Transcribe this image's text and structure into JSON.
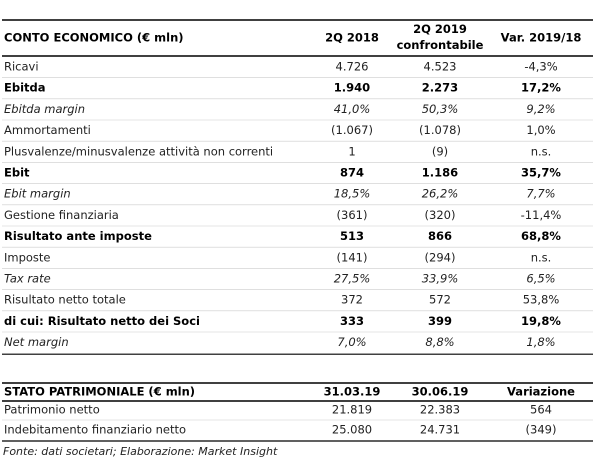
{
  "income_statement": {
    "header": [
      "CONTO ECONOMICO (€ mln)",
      "2Q 2018",
      "2Q 2019 confrontabile",
      "Var. 2019/18"
    ],
    "rows": [
      {
        "label": "Ricavi",
        "values": [
          "4.726",
          "4.523",
          "-4,3%"
        ],
        "style": "normal"
      },
      {
        "label": "Ebitda",
        "values": [
          "1.940",
          "2.273",
          "17,2%"
        ],
        "style": "bold"
      },
      {
        "label": "Ebitda margin",
        "values": [
          "41,0%",
          "50,3%",
          "9,2%"
        ],
        "style": "italic"
      },
      {
        "label": "Ammortamenti",
        "values": [
          "(1.067)",
          "(1.078)",
          "1,0%"
        ],
        "style": "normal"
      },
      {
        "label": "Plusvalenze/minusvalenze attività non correnti",
        "values": [
          "1",
          "(9)",
          "n.s."
        ],
        "style": "normal"
      },
      {
        "label": "Ebit",
        "values": [
          "874",
          "1.186",
          "35,7%"
        ],
        "style": "bold"
      },
      {
        "label": "Ebit margin",
        "values": [
          "18,5%",
          "26,2%",
          "7,7%"
        ],
        "style": "italic"
      },
      {
        "label": "Gestione finanziaria",
        "values": [
          "(361)",
          "(320)",
          "-11,4%"
        ],
        "style": "normal"
      },
      {
        "label": "Risultato ante imposte",
        "values": [
          "513",
          "866",
          "68,8%"
        ],
        "style": "bold"
      },
      {
        "label": "Imposte",
        "values": [
          "(141)",
          "(294)",
          "n.s."
        ],
        "style": "normal"
      },
      {
        "label": "Tax rate",
        "values": [
          "27,5%",
          "33,9%",
          "6,5%"
        ],
        "style": "italic"
      },
      {
        "label": "Risultato netto totale",
        "values": [
          "372",
          "572",
          "53,8%"
        ],
        "style": "normal"
      },
      {
        "label": "di cui: Risultato netto dei Soci",
        "values": [
          "333",
          "399",
          "19,8%"
        ],
        "style": "bold"
      },
      {
        "label": "Net margin",
        "values": [
          "7,0%",
          "8,8%",
          "1,8%"
        ],
        "style": "italic"
      }
    ]
  },
  "balance_sheet": {
    "header": [
      "STATO PATRIMONIALE (€ mln)",
      "31.03.19",
      "30.06.19",
      "Variazione"
    ],
    "rows": [
      {
        "label": "Patrimonio netto",
        "values": [
          "21.819",
          "22.383",
          "564"
        ],
        "style": "normal"
      },
      {
        "label": "Indebitamento finanziario netto",
        "values": [
          "25.080",
          "24.731",
          "(349)"
        ],
        "style": "normal"
      }
    ]
  },
  "footer": "Fonte: dati societari; Elaborazione: Market Insight"
}
